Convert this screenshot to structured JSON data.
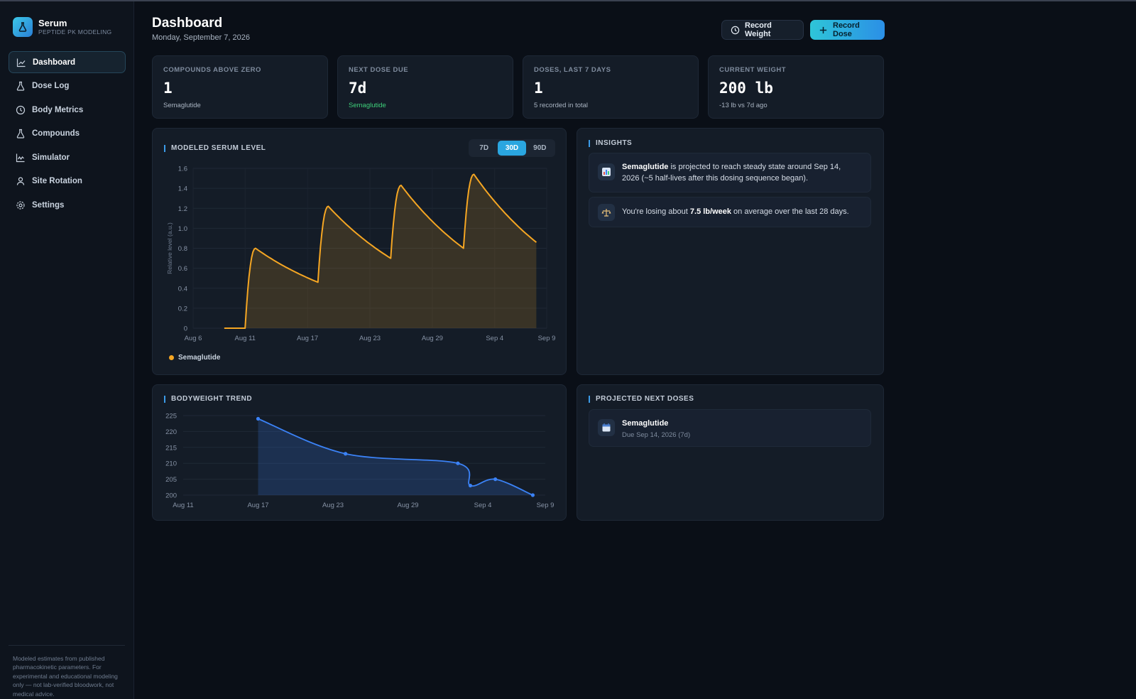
{
  "app": {
    "name": "Serum",
    "subtitle": "PEPTIDE PK MODELING"
  },
  "nav": [
    {
      "label": "Dashboard",
      "icon": "chart-line-icon",
      "active": true
    },
    {
      "label": "Dose Log",
      "icon": "flask-icon"
    },
    {
      "label": "Body Metrics",
      "icon": "clock-icon"
    },
    {
      "label": "Compounds",
      "icon": "flask-icon"
    },
    {
      "label": "Simulator",
      "icon": "wave-chart-icon"
    },
    {
      "label": "Site Rotation",
      "icon": "person-icon"
    },
    {
      "label": "Settings",
      "icon": "gear-icon"
    }
  ],
  "disclaimer": "Modeled estimates from published pharmacokinetic parameters. For experimental and educational modeling only — not lab-verified bloodwork, not medical advice.",
  "header": {
    "title": "Dashboard",
    "date": "Monday, September 7, 2026"
  },
  "actions": {
    "record_weight": "Record Weight",
    "record_dose": "Record Dose"
  },
  "stats": [
    {
      "label": "COMPOUNDS ABOVE ZERO",
      "value": "1",
      "sub": "Semaglutide"
    },
    {
      "label": "NEXT DOSE DUE",
      "value": "7d",
      "sub": "Semaglutide",
      "sub_color": "#3ed07a"
    },
    {
      "label": "DOSES, LAST 7 DAYS",
      "value": "1",
      "sub": "5 recorded in total"
    },
    {
      "label": "CURRENT WEIGHT",
      "value": "200 lb",
      "sub": "-13 lb vs 7d ago"
    }
  ],
  "serum_panel": {
    "title": "MODELED SERUM LEVEL",
    "ranges": [
      "7D",
      "30D",
      "90D"
    ],
    "active_range": "30D",
    "legend": "Semaglutide"
  },
  "weight_panel": {
    "title": "BODYWEIGHT TREND"
  },
  "insights_panel": {
    "title": "INSIGHTS",
    "items": [
      {
        "icon": "bar-chart-icon",
        "bold": "Semaglutide",
        "line1": " is projected to reach steady state around Sep 14,",
        "line2": "2026 (~5 half-lives after this dosing sequence began)."
      },
      {
        "icon": "scale-icon",
        "prefix": "You're losing about ",
        "bold": "7.5 lb/week",
        "suffix": " on average over the last 28 days."
      }
    ]
  },
  "projected_panel": {
    "title": "PROJECTED NEXT DOSES",
    "items": [
      {
        "icon": "calendar-icon",
        "name": "Semaglutide",
        "due": "Due Sep 14, 2026 (7d)"
      }
    ]
  },
  "chart_data": [
    {
      "type": "area",
      "title": "MODELED SERUM LEVEL",
      "ylabel": "Relative level (a.u.)",
      "xlabel": "",
      "ylim": [
        0,
        1.6
      ],
      "yticks": [
        "0",
        "0.2",
        "0.4",
        "0.6",
        "0.8",
        "1.0",
        "1.2",
        "1.4",
        "1.6"
      ],
      "xticks": [
        "Aug 6",
        "Aug 11",
        "Aug 17",
        "Aug 23",
        "Aug 29",
        "Sep 4",
        "Sep 9"
      ],
      "grid": true,
      "color": "#f5a623",
      "series": [
        {
          "name": "Semaglutide",
          "x": [
            "Aug 9",
            "Aug 11",
            "Aug 12",
            "Aug 18",
            "Aug 19",
            "Aug 25",
            "Aug 26",
            "Sep 1",
            "Sep 2",
            "Sep 8"
          ],
          "y": [
            0,
            0,
            0.8,
            0.46,
            1.22,
            0.7,
            1.43,
            0.8,
            1.54,
            0.86
          ]
        }
      ]
    },
    {
      "type": "line",
      "title": "BODYWEIGHT TREND",
      "ylim": [
        200,
        225
      ],
      "yticks": [
        "200",
        "205",
        "210",
        "215",
        "220",
        "225"
      ],
      "xticks": [
        "Aug 11",
        "Aug 17",
        "Aug 23",
        "Aug 29",
        "Sep 4",
        "Sep 9"
      ],
      "grid": true,
      "color": "#3b82f6",
      "series": [
        {
          "name": "Bodyweight",
          "x": [
            "Aug 17",
            "Aug 24",
            "Sep 2",
            "Sep 3",
            "Sep 5",
            "Sep 8"
          ],
          "y": [
            224,
            213,
            210,
            203,
            205,
            200
          ]
        }
      ]
    }
  ]
}
